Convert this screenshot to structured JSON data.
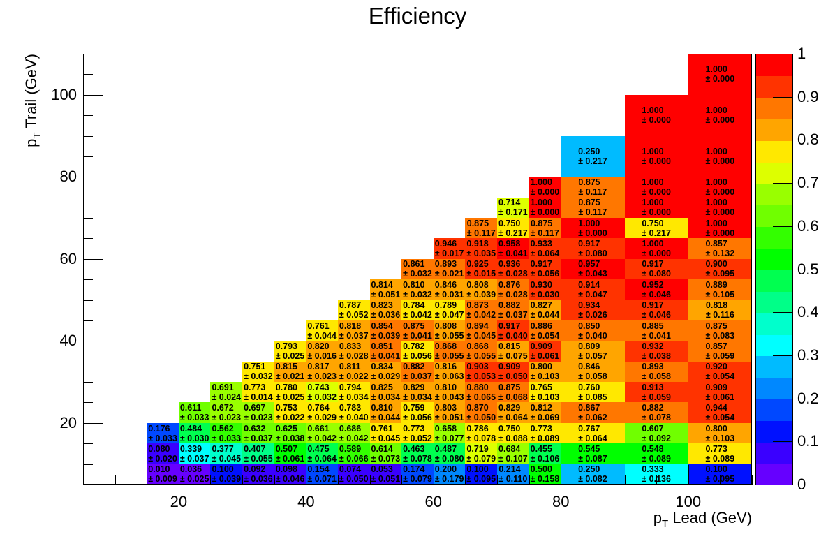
{
  "chart_data": {
    "type": "heatmap",
    "title": "Efficiency",
    "xlabel": {
      "p": "p",
      "sub": "T",
      "text": " Lead (GeV)"
    },
    "ylabel": {
      "p": "p",
      "sub": "T",
      "text": " Trail (GeV)"
    },
    "xlim": [
      5,
      110
    ],
    "ylim": [
      5,
      110
    ],
    "zlim": [
      0,
      1
    ],
    "x_ticks": [
      "20",
      "40",
      "60",
      "80",
      "100"
    ],
    "y_ticks": [
      "20",
      "40",
      "60",
      "80",
      "100"
    ],
    "z_ticks": [
      "0",
      "0.1",
      "0.2",
      "0.3",
      "0.4",
      "0.5",
      "0.6",
      "0.7",
      "0.8",
      "0.9",
      "1"
    ],
    "palette": [
      "#6600ff",
      "#3a00ff",
      "#0011ff",
      "#0048ff",
      "#0088ff",
      "#00bbff",
      "#00ffff",
      "#00ffcc",
      "#00ff88",
      "#00ff50",
      "#00ff00",
      "#33ff00",
      "#70ff00",
      "#99ff00",
      "#ddff00",
      "#ffe800",
      "#ffa500",
      "#ff7700",
      "#ff3300",
      "#ff0000"
    ],
    "x_edges": [
      15,
      20,
      25,
      30,
      35,
      40,
      45,
      50,
      55,
      60,
      65,
      70,
      75,
      80,
      90,
      100,
      110
    ],
    "y_edges": [
      5,
      10,
      15,
      20,
      25,
      30,
      35,
      40,
      45,
      50,
      55,
      60,
      65,
      70,
      75,
      80,
      90,
      100,
      110
    ],
    "rows": [
      {
        "first_col": 0,
        "values": [
          "0.010",
          "0.036",
          "0.100",
          "0.092",
          "0.098",
          "0.154",
          "0.074",
          "0.053",
          "0.174",
          "0.200",
          "0.100",
          "0.214",
          "0.500",
          "0.250",
          "0.333",
          "0.100"
        ],
        "errors": [
          "0.009",
          "0.025",
          "0.039",
          "0.036",
          "0.046",
          "0.071",
          "0.050",
          "0.051",
          "0.079",
          "0.179",
          "0.095",
          "0.110",
          "0.158",
          "0.082",
          "0.136",
          "0.095"
        ]
      },
      {
        "first_col": 0,
        "values": [
          "0.080",
          "0.339",
          "0.377",
          "0.407",
          "0.507",
          "0.475",
          "0.589",
          "0.614",
          "0.463",
          "0.487",
          "0.719",
          "0.684",
          "0.455",
          "0.545",
          "0.548",
          "0.773"
        ],
        "errors": [
          "0.020",
          "0.037",
          "0.045",
          "0.055",
          "0.061",
          "0.064",
          "0.066",
          "0.073",
          "0.078",
          "0.080",
          "0.079",
          "0.107",
          "0.106",
          "0.087",
          "0.089",
          "0.089"
        ]
      },
      {
        "first_col": 0,
        "values": [
          "0.176",
          "0.484",
          "0.562",
          "0.632",
          "0.625",
          "0.661",
          "0.686",
          "0.761",
          "0.773",
          "0.658",
          "0.786",
          "0.750",
          "0.773",
          "0.767",
          "0.607",
          "0.800"
        ],
        "errors": [
          "0.033",
          "0.030",
          "0.033",
          "0.037",
          "0.038",
          "0.042",
          "0.042",
          "0.045",
          "0.052",
          "0.077",
          "0.078",
          "0.088",
          "0.089",
          "0.064",
          "0.092",
          "0.103"
        ]
      },
      {
        "first_col": 1,
        "values": [
          "0.611",
          "0.672",
          "0.697",
          "0.753",
          "0.764",
          "0.783",
          "0.810",
          "0.759",
          "0.803",
          "0.870",
          "0.829",
          "0.812",
          "0.867",
          "0.882",
          "0.944"
        ],
        "errors": [
          "0.033",
          "0.023",
          "0.023",
          "0.022",
          "0.029",
          "0.040",
          "0.044",
          "0.056",
          "0.051",
          "0.050",
          "0.064",
          "0.069",
          "0.062",
          "0.078",
          "0.054"
        ]
      },
      {
        "first_col": 2,
        "values": [
          "0.691",
          "0.773",
          "0.780",
          "0.743",
          "0.794",
          "0.825",
          "0.829",
          "0.810",
          "0.880",
          "0.875",
          "0.765",
          "0.760",
          "0.913",
          "0.909"
        ],
        "errors": [
          "0.024",
          "0.014",
          "0.025",
          "0.032",
          "0.034",
          "0.034",
          "0.034",
          "0.043",
          "0.065",
          "0.068",
          "0.103",
          "0.085",
          "0.059",
          "0.061"
        ]
      },
      {
        "first_col": 3,
        "values": [
          "0.751",
          "0.815",
          "0.817",
          "0.811",
          "0.834",
          "0.882",
          "0.816",
          "0.903",
          "0.909",
          "0.800",
          "0.846",
          "0.893",
          "0.920"
        ],
        "errors": [
          "0.032",
          "0.021",
          "0.023",
          "0.022",
          "0.029",
          "0.037",
          "0.063",
          "0.053",
          "0.050",
          "0.103",
          "0.058",
          "0.058",
          "0.054"
        ]
      },
      {
        "first_col": 4,
        "values": [
          "0.793",
          "0.820",
          "0.833",
          "0.851",
          "0.782",
          "0.868",
          "0.868",
          "0.815",
          "0.909",
          "0.809",
          "0.932",
          "0.857"
        ],
        "errors": [
          "0.025",
          "0.016",
          "0.028",
          "0.041",
          "0.056",
          "0.055",
          "0.055",
          "0.075",
          "0.061",
          "0.057",
          "0.038",
          "0.059"
        ]
      },
      {
        "first_col": 5,
        "values": [
          "0.761",
          "0.818",
          "0.854",
          "0.875",
          "0.808",
          "0.894",
          "0.917",
          "0.886",
          "0.850",
          "0.885",
          "0.875"
        ],
        "errors": [
          "0.044",
          "0.037",
          "0.039",
          "0.041",
          "0.055",
          "0.045",
          "0.040",
          "0.054",
          "0.040",
          "0.041",
          "0.083"
        ]
      },
      {
        "first_col": 6,
        "values": [
          "0.787",
          "0.823",
          "0.784",
          "0.789",
          "0.873",
          "0.882",
          "0.827",
          "0.934",
          "0.917",
          "0.818"
        ],
        "errors": [
          "0.052",
          "0.036",
          "0.042",
          "0.047",
          "0.042",
          "0.037",
          "0.044",
          "0.026",
          "0.046",
          "0.116"
        ]
      },
      {
        "first_col": 7,
        "values": [
          "0.814",
          "0.810",
          "0.846",
          "0.808",
          "0.876",
          "0.930",
          "0.914",
          "0.952",
          "0.889"
        ],
        "errors": [
          "0.051",
          "0.032",
          "0.031",
          "0.039",
          "0.028",
          "0.030",
          "0.047",
          "0.046",
          "0.105"
        ]
      },
      {
        "first_col": 8,
        "values": [
          "0.861",
          "0.893",
          "0.925",
          "0.936",
          "0.917",
          "0.957",
          "0.917",
          "0.900"
        ],
        "errors": [
          "0.032",
          "0.021",
          "0.015",
          "0.028",
          "0.056",
          "0.043",
          "0.080",
          "0.095"
        ]
      },
      {
        "first_col": 9,
        "values": [
          "0.946",
          "0.918",
          "0.958",
          "0.933",
          "0.917",
          "1.000",
          "0.857"
        ],
        "errors": [
          "0.017",
          "0.035",
          "0.041",
          "0.064",
          "0.080",
          "0.000",
          "0.132"
        ]
      },
      {
        "first_col": 10,
        "values": [
          "0.875",
          "0.750",
          "0.875",
          "1.000",
          "0.750",
          "1.000"
        ],
        "errors": [
          "0.117",
          "0.217",
          "0.117",
          "0.000",
          "0.217",
          "0.000"
        ]
      },
      {
        "first_col": 11,
        "values": [
          "0.714",
          "1.000",
          "0.875",
          "1.000",
          "1.000"
        ],
        "errors": [
          "0.171",
          "0.000",
          "0.117",
          "0.000",
          "0.000"
        ]
      },
      {
        "first_col": 12,
        "values": [
          "1.000",
          "0.875",
          "1.000",
          "1.000"
        ],
        "errors": [
          "0.000",
          "0.117",
          "0.000",
          "0.000"
        ]
      },
      {
        "first_col": 13,
        "values": [
          "0.250",
          "1.000",
          "1.000"
        ],
        "errors": [
          "0.217",
          "0.000",
          "0.000"
        ]
      },
      {
        "first_col": 14,
        "values": [
          "1.000",
          "1.000"
        ],
        "errors": [
          "0.000",
          "0.000"
        ]
      },
      {
        "first_col": 15,
        "values": [
          "1.000"
        ],
        "errors": [
          "0.000"
        ]
      }
    ]
  }
}
